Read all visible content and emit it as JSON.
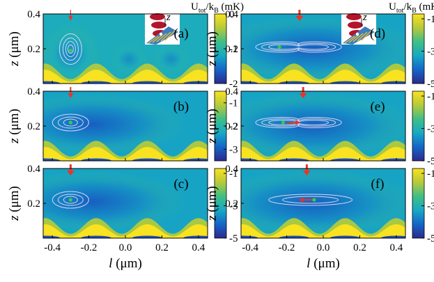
{
  "figure": {
    "colorbar_title": "U",
    "colorbar_title_sub": "tot",
    "colorbar_title_mid": "/k",
    "colorbar_title_sub2": "B",
    "colorbar_title_unit": " (mK)",
    "z_label": "z",
    "z_unit": " (μm)",
    "l_label": "l",
    "l_unit": " (μm)",
    "colormap": [
      "#2b2a8c",
      "#1565c8",
      "#17a9c4",
      "#3fbf86",
      "#b7c93a",
      "#f9e21f"
    ],
    "marker_color": "#ee3322",
    "contour_color": "#d8d8f0",
    "atom_color": "#33cc55"
  },
  "chart_data": [
    {
      "type": "heatmap",
      "panel": "(a)",
      "x_range": [
        -0.45,
        0.45
      ],
      "y_range": [
        0.0,
        0.4
      ],
      "xticks": [
        "-0.4",
        "-0.2",
        "0.0",
        "0.2",
        "0.4"
      ],
      "yticks": [
        "0.4",
        "0.2"
      ],
      "colorbar_range": [
        -2,
        0
      ],
      "colorbar_ticks": [
        "0",
        "-1",
        "-2"
      ],
      "arrow_l": -0.3,
      "atom": [
        -0.3,
        0.19
      ],
      "arrow_size": "thin",
      "shift": null,
      "inset": true
    },
    {
      "type": "heatmap",
      "panel": "(b)",
      "x_range": [
        -0.45,
        0.45
      ],
      "y_range": [
        0.0,
        0.4
      ],
      "xticks": [
        "-0.4",
        "-0.2",
        "0.0",
        "0.2",
        "0.4"
      ],
      "yticks": [
        "0.4",
        "0.2"
      ],
      "colorbar_range": [
        -3.5,
        -0.5
      ],
      "colorbar_ticks": [
        "-1",
        "-2",
        "-3"
      ],
      "arrow_l": -0.3,
      "atom": [
        -0.3,
        0.22
      ],
      "arrow_size": "medium",
      "shift": null,
      "inset": false
    },
    {
      "type": "heatmap",
      "panel": "(c)",
      "x_range": [
        -0.45,
        0.45
      ],
      "y_range": [
        0.0,
        0.4
      ],
      "xticks": [
        "-0.4",
        "-0.2",
        "0.0",
        "0.2",
        "0.4"
      ],
      "yticks": [
        "0.4",
        "0.2"
      ],
      "colorbar_range": [
        -5,
        -0.7
      ],
      "colorbar_ticks": [
        "-1",
        "-3",
        "-5"
      ],
      "arrow_l": -0.3,
      "atom": [
        -0.3,
        0.22
      ],
      "arrow_size": "thick",
      "shift": null,
      "inset": false
    },
    {
      "type": "heatmap",
      "panel": "(d)",
      "x_range": [
        -0.45,
        0.45
      ],
      "y_range": [
        0.0,
        0.4
      ],
      "xticks": [
        "-0.4",
        "-0.2",
        "0.0",
        "0.2",
        "0.4"
      ],
      "yticks": [
        "0.4",
        "0.2"
      ],
      "colorbar_range": [
        -5,
        -0.7
      ],
      "colorbar_ticks": [
        "-1",
        "-3",
        "-5"
      ],
      "arrow_l": -0.13,
      "atom": [
        -0.24,
        0.21
      ],
      "arrow_size": "thick",
      "shift": null,
      "inset": true
    },
    {
      "type": "heatmap",
      "panel": "(e)",
      "x_range": [
        -0.45,
        0.45
      ],
      "y_range": [
        0.0,
        0.4
      ],
      "xticks": [
        "-0.4",
        "-0.2",
        "0.0",
        "0.2",
        "0.4"
      ],
      "yticks": [
        "0.4",
        "0.2"
      ],
      "colorbar_range": [
        -5,
        -0.7
      ],
      "colorbar_ticks": [
        "-1",
        "-3",
        "-5"
      ],
      "arrow_l": -0.11,
      "atom": [
        -0.22,
        0.22
      ],
      "arrow_size": "thick",
      "shift": [
        -0.2,
        -0.14
      ],
      "inset": false
    },
    {
      "type": "heatmap",
      "panel": "(f)",
      "x_range": [
        -0.45,
        0.45
      ],
      "y_range": [
        0.0,
        0.4
      ],
      "xticks": [
        "-0.4",
        "-0.2",
        "0.0",
        "0.2",
        "0.4"
      ],
      "yticks": [
        "0.4",
        "0.2"
      ],
      "colorbar_range": [
        -5,
        -0.7
      ],
      "colorbar_ticks": [
        "-1",
        "-3",
        "-5"
      ],
      "arrow_l": -0.09,
      "atom": [
        -0.05,
        0.22
      ],
      "arrow_size": "thick",
      "shift": [
        -0.06,
        -0.12
      ],
      "inset": false
    }
  ]
}
